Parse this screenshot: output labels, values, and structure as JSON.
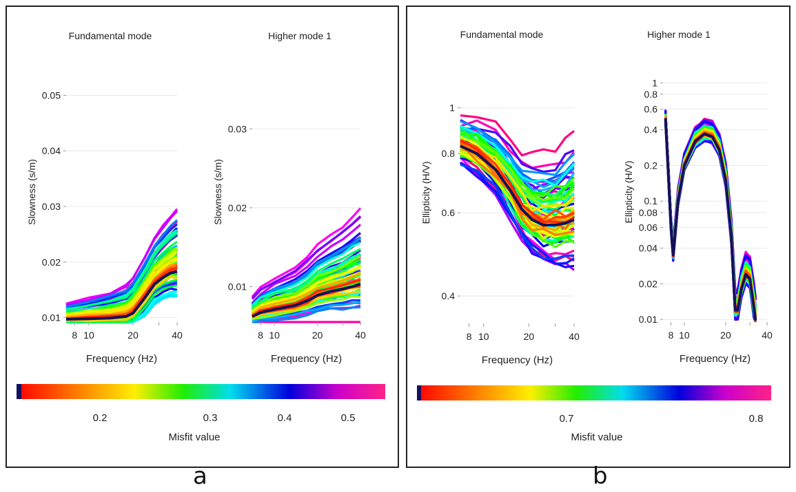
{
  "panels": [
    {
      "letter": "a",
      "colorbar_label": "Misfit value",
      "colorbar_ticks": [
        "0.2",
        "0.3",
        "0.4",
        "0.5"
      ]
    },
    {
      "letter": "b",
      "colorbar_label": "Misfit value",
      "colorbar_ticks": [
        "0.7",
        "0.8"
      ]
    }
  ],
  "chart_data": [
    {
      "type": "line",
      "title": "Fundamental mode",
      "xlabel": "Frequency (Hz)",
      "ylabel": "Slowness (s/m)",
      "xlim": [
        7,
        40
      ],
      "ylim": [
        0.0092,
        0.056
      ],
      "xticks": [
        8,
        10,
        20,
        30,
        40
      ],
      "xtick_labels": [
        "8",
        "10",
        "20",
        "",
        "40"
      ],
      "yticks": [
        0.01,
        0.02,
        0.03,
        0.04,
        0.05
      ],
      "ytick_labels": [
        "0.01",
        "0.02",
        "0.03",
        "0.04",
        "0.05"
      ],
      "best_fit": {
        "x": [
          7,
          10,
          14,
          18,
          20,
          24,
          28,
          32,
          36,
          40
        ],
        "y": [
          0.0097,
          0.0098,
          0.0099,
          0.0102,
          0.0108,
          0.0135,
          0.016,
          0.0172,
          0.018,
          0.0183
        ]
      },
      "misfit_range": [
        0.1,
        0.55
      ]
    },
    {
      "type": "line",
      "title": "Higher mode 1",
      "xlabel": "Frequency (Hz)",
      "ylabel": "Slowness (s/m)",
      "xlim": [
        7,
        40
      ],
      "ylim": [
        0.0055,
        0.0385
      ],
      "xticks": [
        8,
        10,
        20,
        30,
        40
      ],
      "xtick_labels": [
        "8",
        "10",
        "20",
        "",
        "40"
      ],
      "yticks": [
        0.01,
        0.02,
        0.03
      ],
      "ytick_labels": [
        "0.01",
        "0.02",
        "0.03"
      ],
      "best_fit": {
        "x": [
          7,
          8,
          10,
          14,
          17,
          20,
          25,
          30,
          35,
          40
        ],
        "y": [
          0.0062,
          0.0067,
          0.0071,
          0.0076,
          0.0082,
          0.0089,
          0.0094,
          0.0097,
          0.01,
          0.0103
        ]
      },
      "misfit_range": [
        0.1,
        0.55
      ]
    },
    {
      "type": "line",
      "title": "Fundamental mode",
      "xlabel": "Frequency (Hz)",
      "ylabel": "Ellipticity (H/V)",
      "yscale": "log",
      "xlim": [
        7,
        40
      ],
      "ylim": [
        0.35,
        1.25
      ],
      "xticks": [
        8,
        10,
        20,
        30,
        40
      ],
      "xtick_labels": [
        "8",
        "10",
        "20",
        "",
        "40"
      ],
      "yticks": [
        0.4,
        0.6,
        0.8,
        1
      ],
      "ytick_labels": [
        "0.4",
        "0.6",
        "0.8",
        "1"
      ],
      "best_fit": {
        "x": [
          7,
          9,
          12,
          15,
          18,
          21,
          25,
          30,
          35,
          40
        ],
        "y": [
          0.83,
          0.8,
          0.74,
          0.67,
          0.61,
          0.58,
          0.565,
          0.565,
          0.57,
          0.58
        ]
      },
      "misfit_range": [
        0.62,
        0.83
      ]
    },
    {
      "type": "line",
      "title": "Higher mode 1",
      "xlabel": "Frequency (Hz)",
      "ylabel": "Ellipticity (H/V)",
      "yscale": "log",
      "xlim": [
        7,
        40
      ],
      "ylim": [
        0.0095,
        1.5
      ],
      "xticks": [
        8,
        10,
        20,
        30,
        40
      ],
      "xtick_labels": [
        "8",
        "10",
        "20",
        "",
        "40"
      ],
      "yticks": [
        0.01,
        0.02,
        0.04,
        0.06,
        0.08,
        0.1,
        0.2,
        0.4,
        0.6,
        0.8,
        1
      ],
      "ytick_labels": [
        "0.01",
        "0.02",
        "0.04",
        "0.06",
        "0.08",
        "0.1",
        "0.2",
        "0.4",
        "0.6",
        "0.8",
        "1"
      ],
      "best_fit": {
        "x": [
          7.3,
          7.6,
          8,
          8.3,
          9,
          10,
          12,
          14,
          16,
          18,
          20,
          22,
          23.5,
          24.5,
          26,
          28,
          30,
          32,
          33
        ],
        "y": [
          0.5,
          0.2,
          0.06,
          0.035,
          0.1,
          0.2,
          0.32,
          0.37,
          0.35,
          0.27,
          0.15,
          0.05,
          0.012,
          0.012,
          0.018,
          0.024,
          0.022,
          0.013,
          0.0098
        ]
      },
      "misfit_range": [
        0.62,
        0.83
      ]
    }
  ]
}
